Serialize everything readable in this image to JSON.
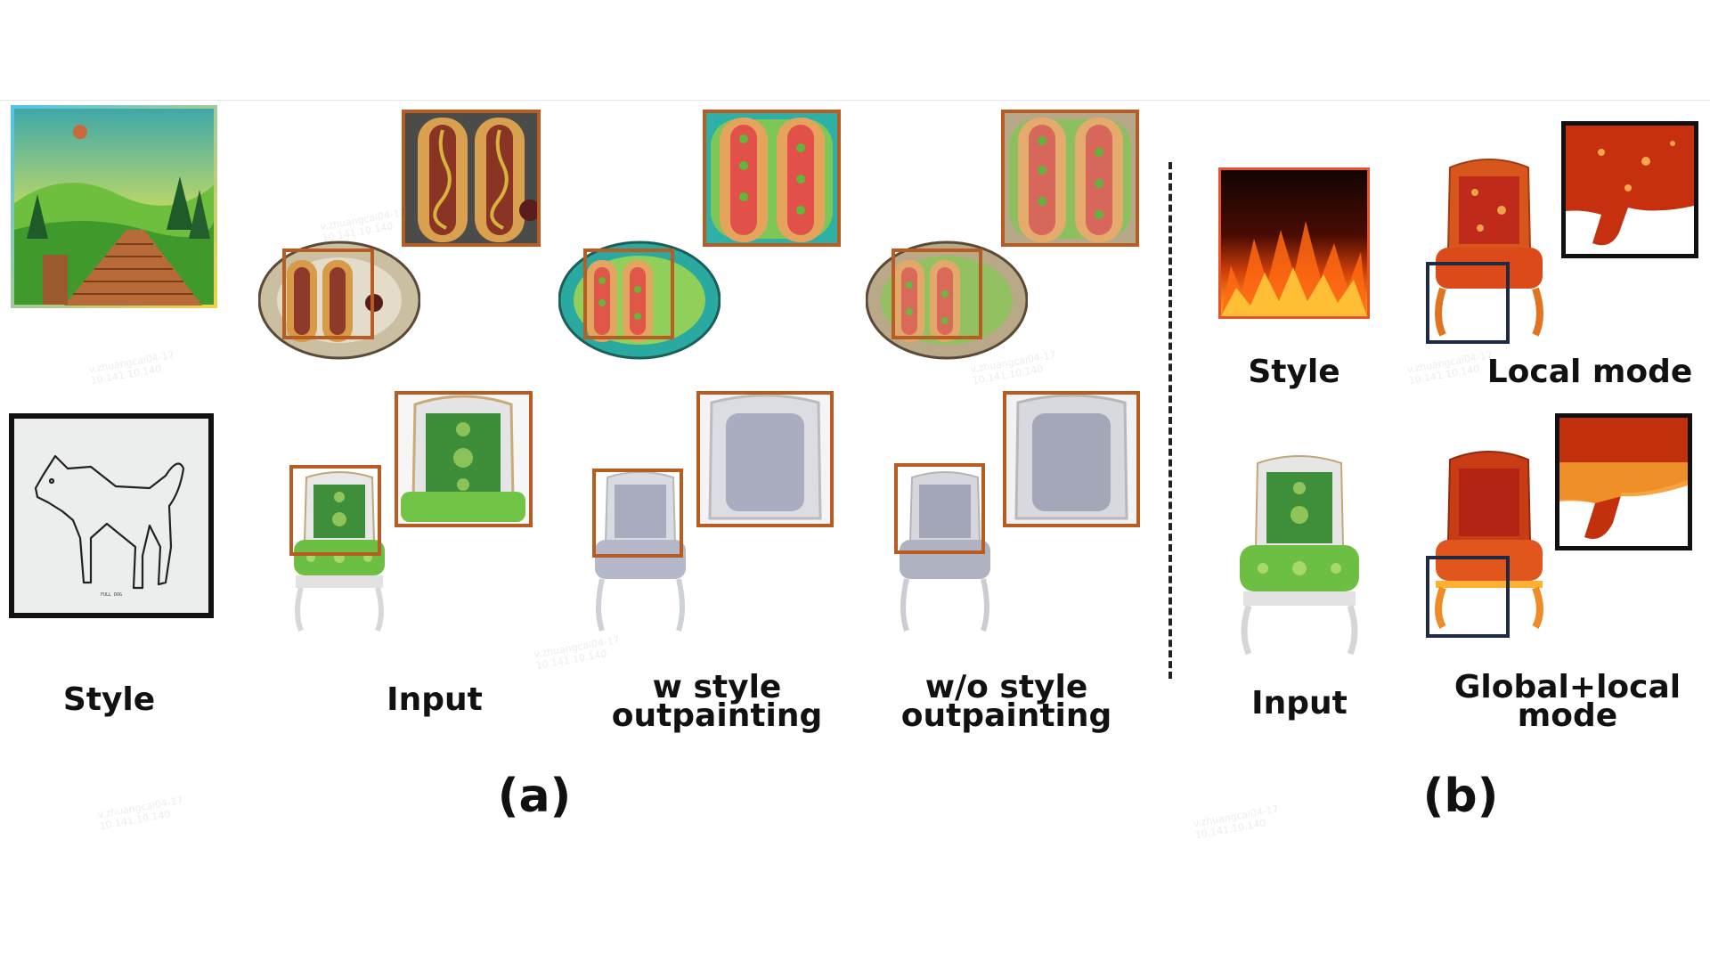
{
  "panel_a": {
    "label": "(a)",
    "columns": {
      "style": "Style",
      "input": "Input",
      "with_style": [
        "w style",
        "outpainting"
      ],
      "without_style": [
        "w/o style",
        "outpainting"
      ]
    },
    "dog_caption": "FULL DOG"
  },
  "panel_b": {
    "label": "(b)",
    "style": "Style",
    "local_mode": "Local mode",
    "input": "Input",
    "global_local_mode": [
      "Global+local",
      "mode"
    ]
  },
  "watermark": [
    "v.zhuangcai04-17",
    "10.141.10.140"
  ],
  "colors": {
    "highlight_box": "#b85c22",
    "local_box": "#1f2a44",
    "zoom_frame": "#111111"
  }
}
